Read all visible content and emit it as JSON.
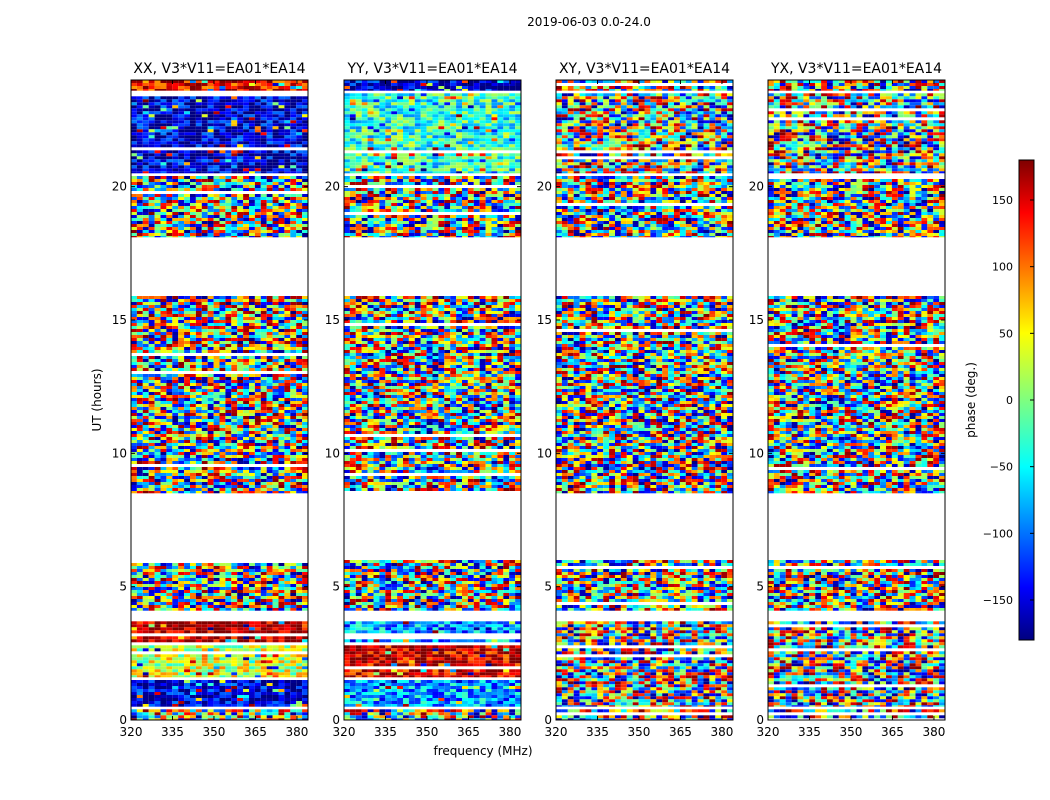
{
  "figure": {
    "suptitle": "2019-06-03 0.0-24.0",
    "ylabel": "UT (hours)",
    "xlabel": "frequency (MHz)"
  },
  "chart_data": [
    {
      "type": "heatmap",
      "title": "XX, V3*V11=EA01*EA14",
      "x_ticks": [
        "320",
        "335",
        "350",
        "365",
        "380"
      ],
      "y_ticks": [
        "0",
        "5",
        "10",
        "15",
        "20"
      ],
      "xlim": [
        320,
        384
      ],
      "ylim": [
        0,
        24
      ],
      "xlabel": "",
      "ylabel": "UT (hours)",
      "bands": [
        {
          "y": [
            0.0,
            0.4
          ],
          "value": "noise"
        },
        {
          "y": [
            0.5,
            1.5
          ],
          "value": -150
        },
        {
          "y": [
            1.6,
            2.8
          ],
          "value": 30
        },
        {
          "y": [
            2.9,
            3.7
          ],
          "value": 170
        },
        {
          "y": [
            4.1,
            6.0
          ],
          "value": "noise"
        },
        {
          "y": [
            8.5,
            15.9
          ],
          "value": "noise"
        },
        {
          "y": [
            18.1,
            20.4
          ],
          "value": "noise"
        },
        {
          "y": [
            20.5,
            23.5
          ],
          "value": -150
        },
        {
          "y": [
            23.6,
            24.0
          ],
          "value": 140
        }
      ]
    },
    {
      "type": "heatmap",
      "title": "YY, V3*V11=EA01*EA14",
      "x_ticks": [
        "320",
        "335",
        "350",
        "365",
        "380"
      ],
      "y_ticks": [
        "0",
        "5",
        "10",
        "15",
        "20"
      ],
      "xlim": [
        320,
        384
      ],
      "ylim": [
        0,
        24
      ],
      "xlabel": "frequency (MHz)",
      "ylabel": "",
      "bands": [
        {
          "y": [
            0.0,
            0.4
          ],
          "value": "noise"
        },
        {
          "y": [
            0.5,
            1.5
          ],
          "value": -80
        },
        {
          "y": [
            1.6,
            2.8
          ],
          "value": 150
        },
        {
          "y": [
            2.9,
            3.7
          ],
          "value": -80
        },
        {
          "y": [
            4.1,
            6.0
          ],
          "value": "noise"
        },
        {
          "y": [
            8.5,
            15.9
          ],
          "value": "noise"
        },
        {
          "y": [
            18.1,
            20.4
          ],
          "value": "noise"
        },
        {
          "y": [
            20.5,
            23.5
          ],
          "value": -30
        },
        {
          "y": [
            23.6,
            24.0
          ],
          "value": -150
        }
      ]
    },
    {
      "type": "heatmap",
      "title": "XY, V3*V11=EA01*EA14",
      "x_ticks": [
        "320",
        "335",
        "350",
        "365",
        "380"
      ],
      "y_ticks": [
        "0",
        "5",
        "10",
        "15",
        "20"
      ],
      "xlim": [
        320,
        384
      ],
      "ylim": [
        0,
        24
      ],
      "xlabel": "",
      "ylabel": "",
      "bands": [
        {
          "y": [
            0.0,
            0.4
          ],
          "value": "noise"
        },
        {
          "y": [
            0.5,
            3.7
          ],
          "value": "noise"
        },
        {
          "y": [
            4.1,
            6.0
          ],
          "value": "noise"
        },
        {
          "y": [
            8.5,
            15.9
          ],
          "value": "noise"
        },
        {
          "y": [
            18.1,
            20.4
          ],
          "value": "noise"
        },
        {
          "y": [
            20.5,
            23.5
          ],
          "value": "noise"
        },
        {
          "y": [
            23.6,
            24.0
          ],
          "value": "noise"
        }
      ]
    },
    {
      "type": "heatmap",
      "title": "YX, V3*V11=EA01*EA14",
      "x_ticks": [
        "320",
        "335",
        "350",
        "365",
        "380"
      ],
      "y_ticks": [
        "0",
        "5",
        "10",
        "15",
        "20"
      ],
      "xlim": [
        320,
        384
      ],
      "ylim": [
        0,
        24
      ],
      "xlabel": "",
      "ylabel": "",
      "bands": [
        {
          "y": [
            0.0,
            0.4
          ],
          "value": "noise"
        },
        {
          "y": [
            0.5,
            3.7
          ],
          "value": "noise"
        },
        {
          "y": [
            4.1,
            6.0
          ],
          "value": "noise"
        },
        {
          "y": [
            8.5,
            15.9
          ],
          "value": "noise"
        },
        {
          "y": [
            18.1,
            20.4
          ],
          "value": "noise"
        },
        {
          "y": [
            20.5,
            23.5
          ],
          "value": "noise"
        },
        {
          "y": [
            23.6,
            24.0
          ],
          "value": "noise"
        }
      ]
    }
  ],
  "colorbar": {
    "label": "phase (deg.)",
    "range": [
      -180,
      180
    ],
    "ticks": [
      "150",
      "100",
      "50",
      "0",
      "−50",
      "−100",
      "−150"
    ],
    "tick_values": [
      150,
      100,
      50,
      0,
      -50,
      -100,
      -150
    ],
    "colormap": "jet"
  }
}
